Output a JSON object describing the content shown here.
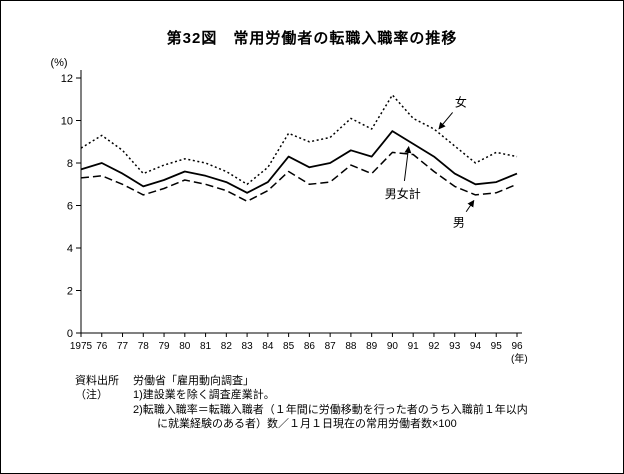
{
  "chart_data": {
    "type": "line",
    "title": "第32図　常用労働者の転職入職率の推移",
    "x_tick_labels": [
      "1975",
      "76",
      "77",
      "78",
      "79",
      "80",
      "81",
      "82",
      "83",
      "84",
      "85",
      "86",
      "87",
      "88",
      "89",
      "90",
      "91",
      "92",
      "93",
      "94",
      "95",
      "96"
    ],
    "x_axis_note": "(年)",
    "y_axis_note": "(%)",
    "ylim": [
      0,
      12
    ],
    "y_ticks": [
      0,
      2,
      4,
      6,
      8,
      10,
      12
    ],
    "grid": false,
    "series": [
      {
        "id": "women",
        "name": "女",
        "line_style": "dotted",
        "values": [
          8.7,
          9.3,
          8.6,
          7.5,
          7.9,
          8.2,
          8.0,
          7.6,
          7.0,
          7.8,
          9.4,
          9.0,
          9.2,
          10.1,
          9.6,
          11.2,
          10.1,
          9.6,
          8.8,
          8.0,
          8.5,
          8.3
        ]
      },
      {
        "id": "total",
        "name": "男女計",
        "line_style": "solid",
        "values": [
          7.7,
          8.0,
          7.5,
          6.9,
          7.2,
          7.6,
          7.4,
          7.1,
          6.6,
          7.1,
          8.3,
          7.8,
          8.0,
          8.6,
          8.3,
          9.5,
          8.9,
          8.3,
          7.5,
          7.0,
          7.1,
          7.5
        ]
      },
      {
        "id": "men",
        "name": "男",
        "line_style": "dashed",
        "values": [
          7.3,
          7.4,
          7.0,
          6.5,
          6.8,
          7.2,
          7.0,
          6.7,
          6.2,
          6.7,
          7.6,
          7.0,
          7.1,
          7.9,
          7.5,
          8.5,
          8.4,
          7.6,
          6.9,
          6.5,
          6.6,
          7.0
        ]
      }
    ],
    "annotations": [
      {
        "series": "women",
        "text": "女",
        "label": {
          "x": 18.3,
          "y": 10.85
        },
        "target": {
          "x": 17.15,
          "y": 9.5
        }
      },
      {
        "series": "total",
        "text": "男女計",
        "label": {
          "x": 15.5,
          "y": 6.55
        },
        "target": {
          "x": 15.8,
          "y": 8.9
        }
      },
      {
        "series": "men",
        "text": "男",
        "label": {
          "x": 18.2,
          "y": 5.2
        },
        "target": {
          "x": 19.0,
          "y": 6.35
        }
      }
    ]
  },
  "notes": {
    "source_label": "資料出所",
    "source_text": "労働省「雇用動向調査」",
    "note_label": "（注）",
    "note1": "1)建設業を除く調査産業計。",
    "note2": "2)転職入職率＝転職入職者（１年間に労働移動を行った者のうち入職前１年以内",
    "note2_cont": "に就業経験のある者）数／１月１日現在の常用労働者数×100"
  }
}
